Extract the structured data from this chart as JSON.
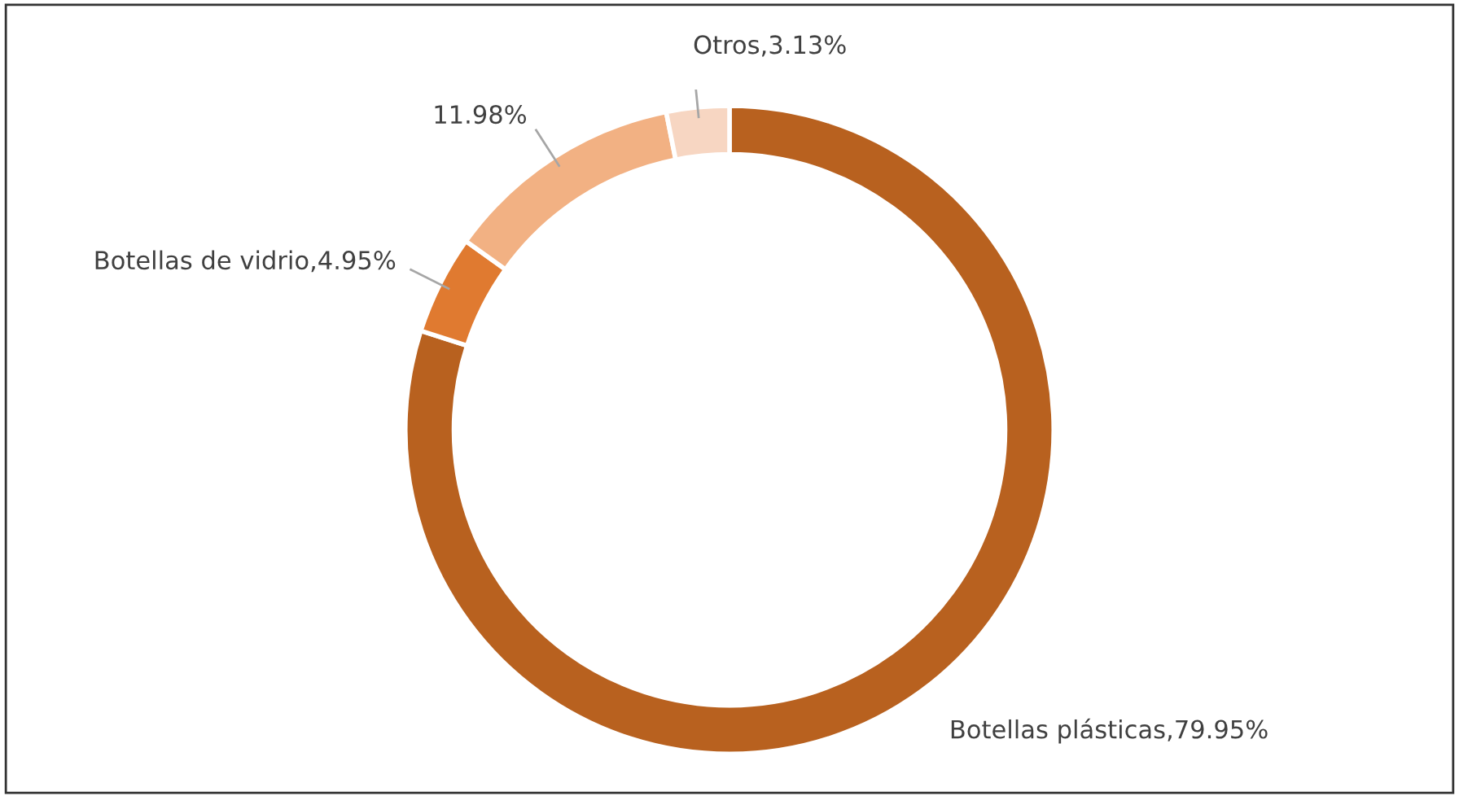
{
  "chart_data": {
    "type": "donut",
    "categories": [
      "Botellas plásticas",
      "Botellas de vidrio",
      null,
      "Otros"
    ],
    "values": [
      79.95,
      4.95,
      11.98,
      3.13
    ],
    "colors": [
      "#b8611f",
      "#e07a30",
      "#f2b183",
      "#f7d6c2"
    ],
    "value_labels": [
      "79.95%",
      "4.95%",
      "11.98%",
      "3.13%"
    ],
    "legend": false
  }
}
